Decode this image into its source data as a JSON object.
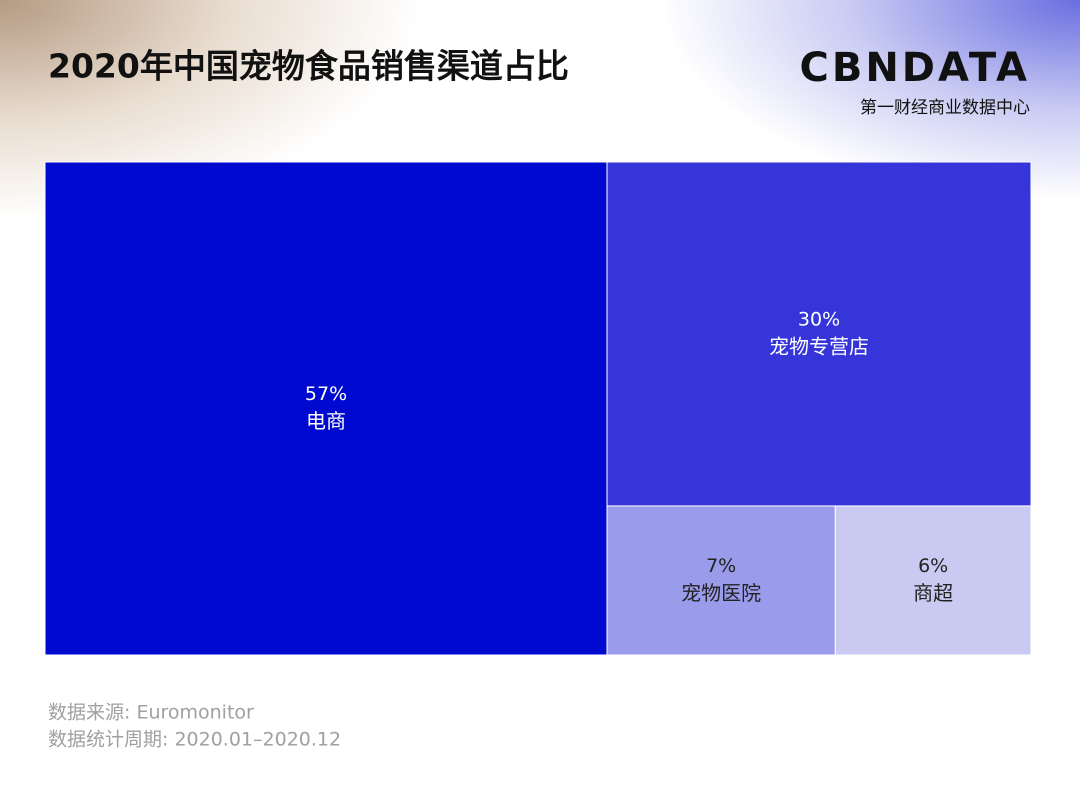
{
  "chart_data": {
    "type": "treemap",
    "title": "2020年中国宠物食品销售渠道占比",
    "categories": [
      "电商",
      "宠物专营店",
      "宠物医院",
      "商超"
    ],
    "values": [
      57,
      30,
      7,
      6
    ],
    "value_labels": [
      "57%",
      "30%",
      "7%",
      "6%"
    ],
    "colors": [
      "#0009cf",
      "#3535d9",
      "#9a9bea",
      "#c9c9f2"
    ]
  },
  "logo": {
    "brand": "CBNDATA",
    "tagline": "第一财经商业数据中心"
  },
  "footer": {
    "source": "数据来源: Euromonitor",
    "period": "数据统计周期: 2020.01–2020.12"
  }
}
